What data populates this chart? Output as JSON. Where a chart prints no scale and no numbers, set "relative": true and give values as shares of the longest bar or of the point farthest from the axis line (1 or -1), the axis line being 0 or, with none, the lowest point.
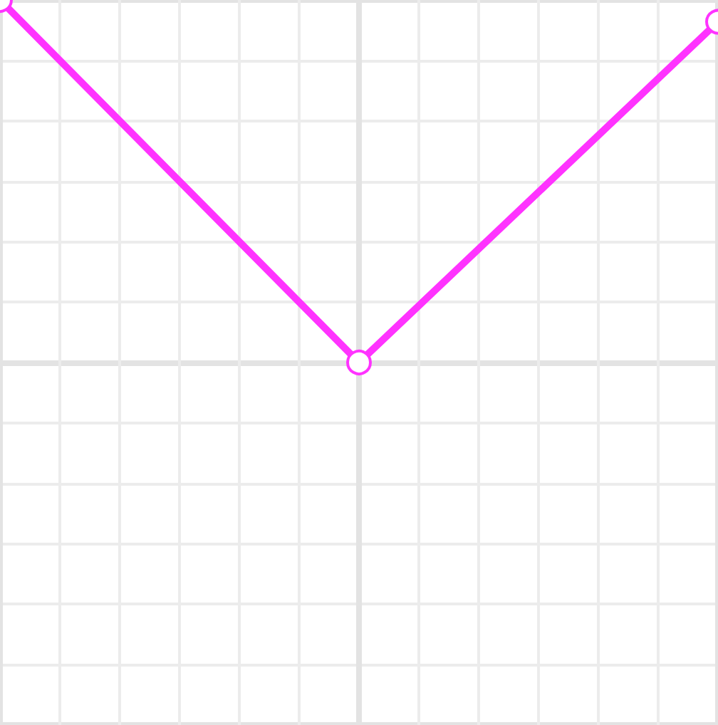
{
  "chart_data": {
    "type": "line",
    "relative": true,
    "categories": [
      null,
      null,
      null
    ],
    "series": [
      {
        "color": "#ff33ff",
        "values": [
          1,
          0,
          0.94
        ]
      }
    ],
    "marker": "circle",
    "line_style": "solid",
    "grid": true
  }
}
